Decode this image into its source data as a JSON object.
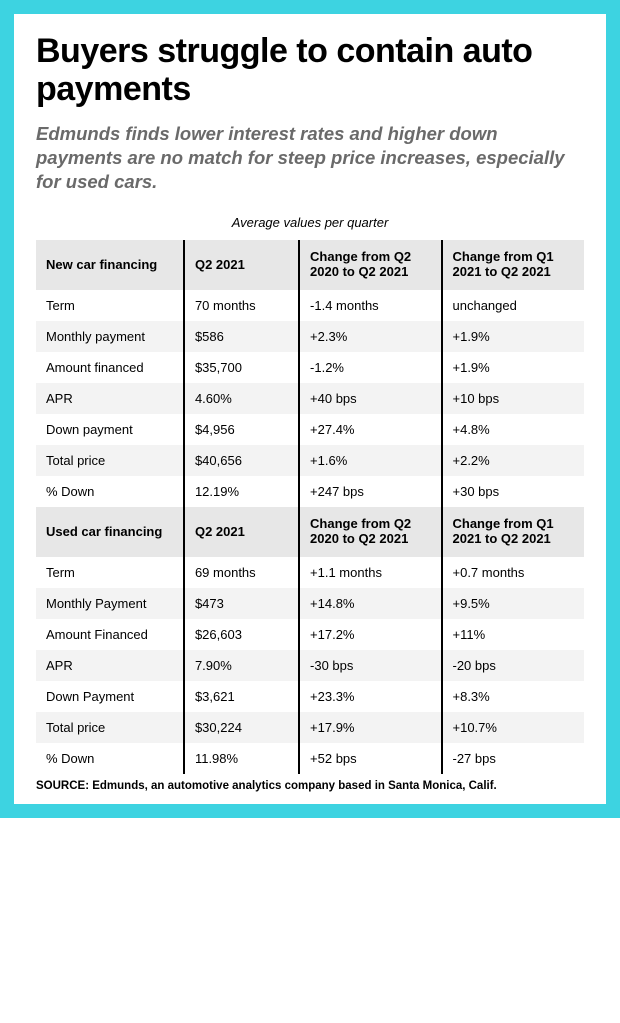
{
  "frame_border_color": "#3dd3e1",
  "headline": "Buyers struggle to contain auto payments",
  "subhead": "Edmunds finds lower interest rates and higher down payments are no match for steep price increases, especially for used cars.",
  "table_title": "Average values per quarter",
  "source": "SOURCE: Edmunds, an automotive analytics company based in Santa Monica, Calif.",
  "colors": {
    "text": "#000000",
    "subhead": "#6a6a6a",
    "row_alt": "#f3f3f3",
    "header_bg": "#e7e7e7",
    "divider": "#000000"
  },
  "fonts": {
    "headline_size_pt": 26,
    "subhead_size_pt": 14,
    "body_size_pt": 10
  },
  "sections": [
    {
      "header": [
        "New car financing",
        "Q2 2021",
        "Change from Q2 2020 to Q2 2021",
        "Change from Q1 2021 to Q2 2021"
      ],
      "rows": [
        [
          "Term",
          "70 months",
          "-1.4 months",
          "unchanged"
        ],
        [
          "Monthly payment",
          "$586",
          "+2.3%",
          "+1.9%"
        ],
        [
          "Amount financed",
          "$35,700",
          "-1.2%",
          "+1.9%"
        ],
        [
          "APR",
          "4.60%",
          "+40 bps",
          "+10 bps"
        ],
        [
          "Down payment",
          "$4,956",
          "+27.4%",
          "+4.8%"
        ],
        [
          "Total price",
          "$40,656",
          "+1.6%",
          "+2.2%"
        ],
        [
          "% Down",
          "12.19%",
          "+247 bps",
          "+30 bps"
        ]
      ]
    },
    {
      "header": [
        "Used car financing",
        "Q2 2021",
        "Change from Q2 2020 to Q2 2021",
        "Change from Q1 2021 to Q2 2021"
      ],
      "rows": [
        [
          "Term",
          "69 months",
          "+1.1 months",
          "+0.7 months"
        ],
        [
          "Monthly Payment",
          "$473",
          "+14.8%",
          "+9.5%"
        ],
        [
          "Amount Financed",
          "$26,603",
          "+17.2%",
          "+11%"
        ],
        [
          "APR",
          "7.90%",
          "-30 bps",
          "-20 bps"
        ],
        [
          "Down Payment",
          "$3,621",
          "+23.3%",
          "+8.3%"
        ],
        [
          "Total price",
          "$30,224",
          "+17.9%",
          "+10.7%"
        ],
        [
          "% Down",
          "11.98%",
          "+52 bps",
          "-27 bps"
        ]
      ]
    }
  ]
}
